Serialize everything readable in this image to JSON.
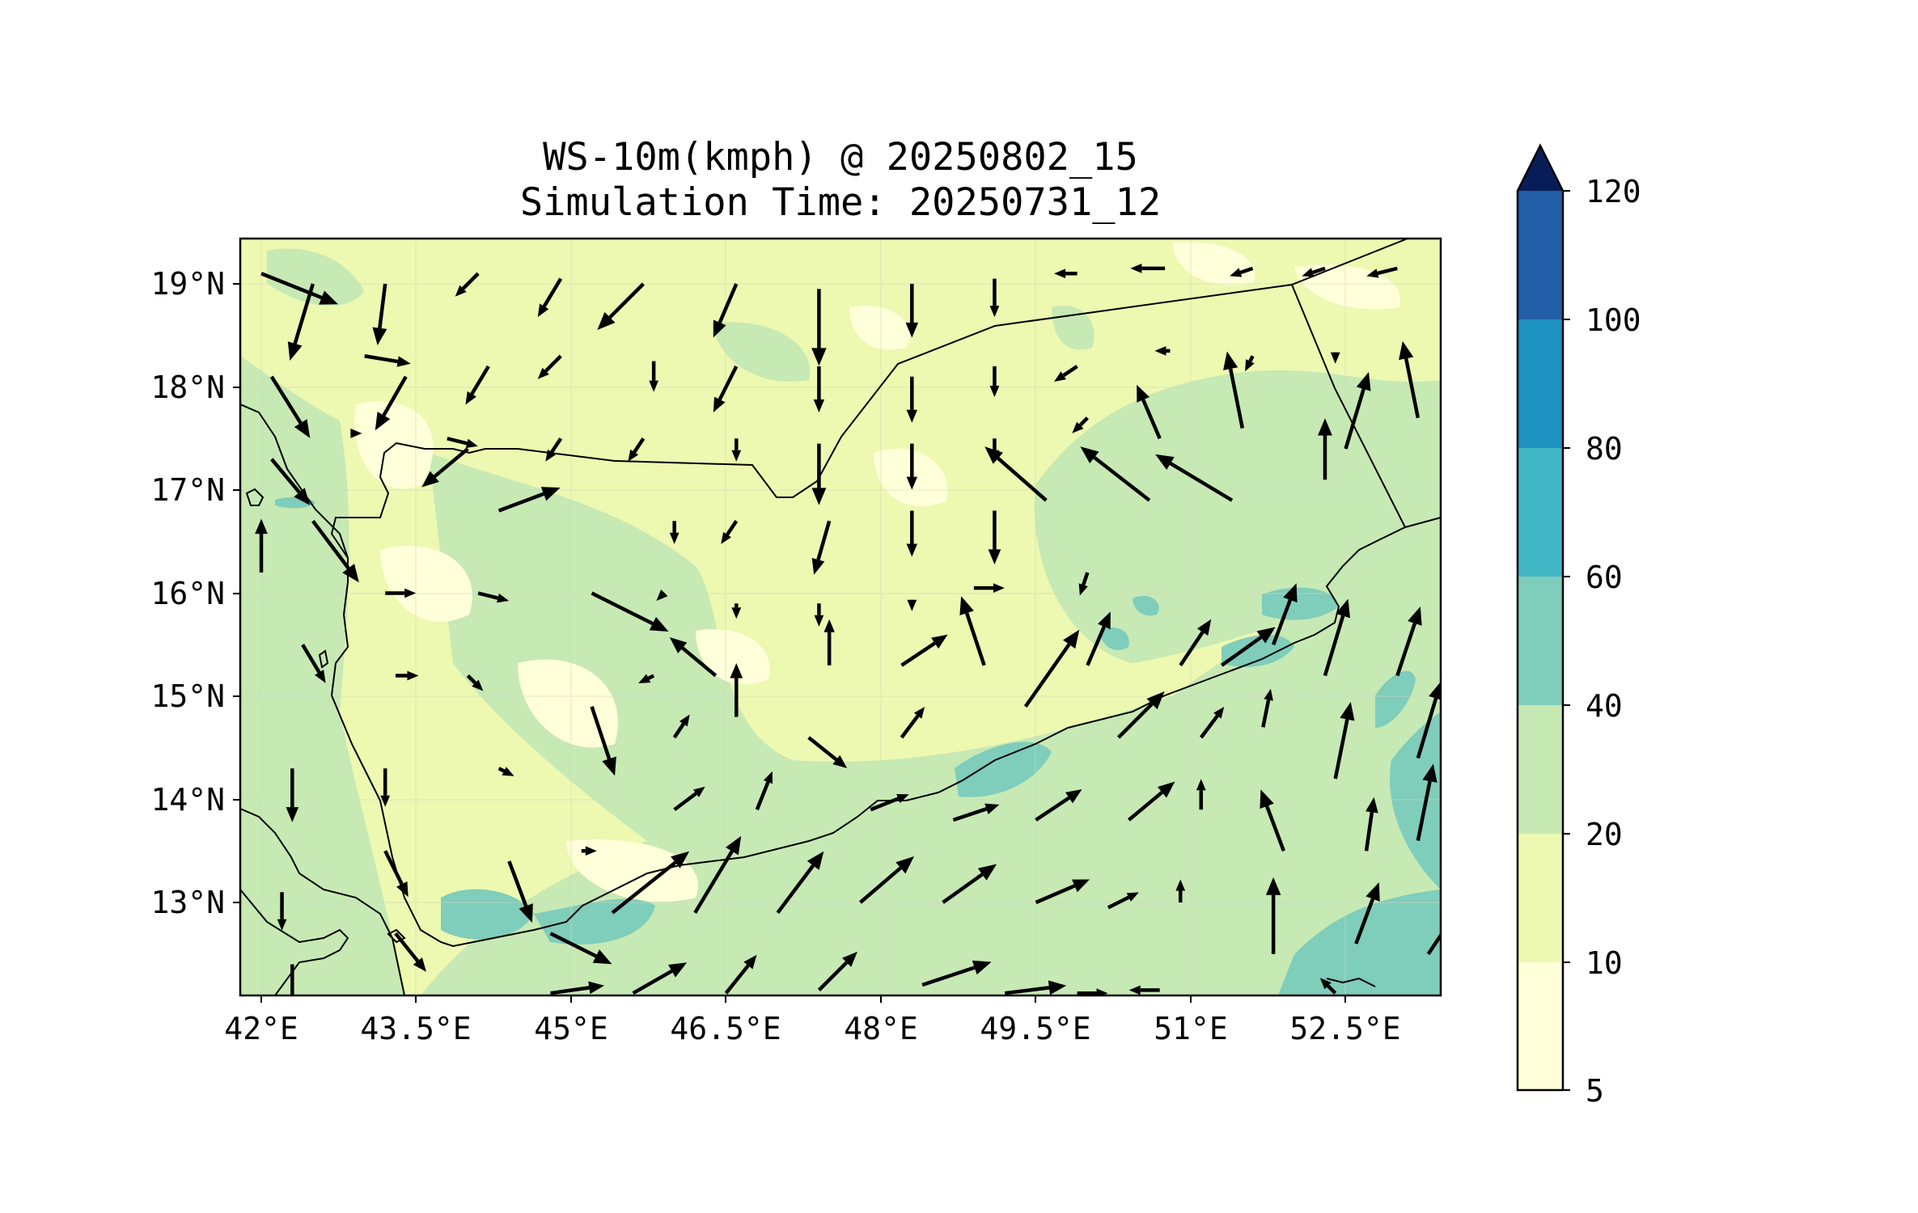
{
  "figure": {
    "title": "WS-10m(kmph) @ 20250802_15",
    "subtitle": "Simulation Time: 20250731_12"
  },
  "axes": {
    "lon_ticks": [
      "42°E",
      "43.5°E",
      "45°E",
      "46.5°E",
      "48°E",
      "49.5°E",
      "51°E",
      "52.5°E"
    ],
    "lat_ticks": [
      "19°N",
      "18°N",
      "17°N",
      "16°N",
      "15°N",
      "14°N",
      "13°N"
    ]
  },
  "colorbar": {
    "labels": [
      "5",
      "10",
      "20",
      "40",
      "60",
      "80",
      "100",
      "120"
    ],
    "colors": [
      "#ffffd9",
      "#edf8b1",
      "#c7e9b4",
      "#7fcdbb",
      "#41b6c4",
      "#1d91c0",
      "#225ea8",
      "#253494",
      "#081d58"
    ],
    "extend": "max"
  },
  "chart_data": {
    "type": "heatmap",
    "title": "WS-10m(kmph) @ 20250802_15",
    "subtitle": "Simulation Time: 20250731_12",
    "variable": "WS-10m(kmph)",
    "lon_range": [
      41.9,
      53.5
    ],
    "lat_range": [
      12.1,
      19.45
    ],
    "color_levels": [
      5,
      10,
      20,
      40,
      60,
      80,
      100,
      120
    ],
    "grid": true,
    "wind_vectors": [
      {
        "lon": 42.0,
        "lat": 19.1,
        "u": 1,
        "v": -0.4
      },
      {
        "lon": 42.5,
        "lat": 19.0,
        "u": -0.3,
        "v": -1
      },
      {
        "lon": 43.2,
        "lat": 19.0,
        "u": -0.1,
        "v": -0.8
      },
      {
        "lon": 44.1,
        "lat": 19.1,
        "u": -0.3,
        "v": -0.3
      },
      {
        "lon": 44.9,
        "lat": 19.05,
        "u": -0.3,
        "v": -0.5
      },
      {
        "lon": 45.7,
        "lat": 19.0,
        "u": -0.6,
        "v": -0.6
      },
      {
        "lon": 46.6,
        "lat": 19.0,
        "u": -0.3,
        "v": -0.7
      },
      {
        "lon": 47.4,
        "lat": 18.95,
        "u": 0,
        "v": -1
      },
      {
        "lon": 48.3,
        "lat": 19.0,
        "u": 0,
        "v": -0.7
      },
      {
        "lon": 49.1,
        "lat": 19.05,
        "u": 0,
        "v": -0.5
      },
      {
        "lon": 49.9,
        "lat": 19.1,
        "u": -0.3,
        "v": 0
      },
      {
        "lon": 50.75,
        "lat": 19.15,
        "u": -0.45,
        "v": 0
      },
      {
        "lon": 51.6,
        "lat": 19.15,
        "u": -0.3,
        "v": -0.1
      },
      {
        "lon": 52.3,
        "lat": 19.15,
        "u": -0.3,
        "v": -0.1
      },
      {
        "lon": 53.0,
        "lat": 19.15,
        "u": -0.4,
        "v": -0.1
      },
      {
        "lon": 42.1,
        "lat": 18.1,
        "u": 0.5,
        "v": -0.8
      },
      {
        "lon": 43.0,
        "lat": 18.3,
        "u": 0.6,
        "v": -0.1
      },
      {
        "lon": 43.4,
        "lat": 18.1,
        "u": -0.4,
        "v": -0.7
      },
      {
        "lon": 44.2,
        "lat": 18.2,
        "u": -0.3,
        "v": -0.5
      },
      {
        "lon": 44.9,
        "lat": 18.3,
        "u": -0.3,
        "v": -0.3
      },
      {
        "lon": 45.8,
        "lat": 18.25,
        "u": 0,
        "v": -0.4
      },
      {
        "lon": 46.6,
        "lat": 18.2,
        "u": -0.3,
        "v": -0.6
      },
      {
        "lon": 47.4,
        "lat": 18.2,
        "u": 0,
        "v": -0.6
      },
      {
        "lon": 48.3,
        "lat": 18.1,
        "u": 0,
        "v": -0.6
      },
      {
        "lon": 49.1,
        "lat": 18.2,
        "u": 0,
        "v": -0.4
      },
      {
        "lon": 49.9,
        "lat": 18.2,
        "u": -0.3,
        "v": -0.2
      },
      {
        "lon": 50.8,
        "lat": 18.35,
        "u": -0.2,
        "v": 0
      },
      {
        "lon": 51.6,
        "lat": 18.3,
        "u": -0.1,
        "v": -0.2
      },
      {
        "lon": 52.4,
        "lat": 18.3,
        "u": 0,
        "v": -0.1
      },
      {
        "lon": 42.1,
        "lat": 17.3,
        "u": 0.5,
        "v": -0.6
      },
      {
        "lon": 42.9,
        "lat": 17.55,
        "u": 0.1,
        "v": 0
      },
      {
        "lon": 43.8,
        "lat": 17.5,
        "u": 0.4,
        "v": -0.1
      },
      {
        "lon": 44.0,
        "lat": 17.4,
        "u": -0.6,
        "v": -0.5
      },
      {
        "lon": 44.9,
        "lat": 17.5,
        "u": -0.2,
        "v": -0.3
      },
      {
        "lon": 45.7,
        "lat": 17.5,
        "u": -0.2,
        "v": -0.3
      },
      {
        "lon": 46.6,
        "lat": 17.5,
        "u": 0,
        "v": -0.3
      },
      {
        "lon": 47.4,
        "lat": 17.45,
        "u": 0,
        "v": -0.8
      },
      {
        "lon": 48.3,
        "lat": 17.45,
        "u": 0,
        "v": -0.6
      },
      {
        "lon": 49.1,
        "lat": 17.5,
        "u": 0,
        "v": -0.3
      },
      {
        "lon": 50.0,
        "lat": 17.7,
        "u": -0.2,
        "v": -0.2
      },
      {
        "lon": 49.6,
        "lat": 16.9,
        "u": -0.8,
        "v": 0.7
      },
      {
        "lon": 50.7,
        "lat": 17.5,
        "u": -0.3,
        "v": 0.7
      },
      {
        "lon": 50.6,
        "lat": 16.9,
        "u": -0.9,
        "v": 0.7
      },
      {
        "lon": 51.4,
        "lat": 16.9,
        "u": -1,
        "v": 0.6
      },
      {
        "lon": 51.5,
        "lat": 17.6,
        "u": -0.2,
        "v": 1
      },
      {
        "lon": 52.3,
        "lat": 17.1,
        "u": 0,
        "v": 0.8
      },
      {
        "lon": 52.5,
        "lat": 17.4,
        "u": 0.3,
        "v": 1
      },
      {
        "lon": 53.2,
        "lat": 17.7,
        "u": -0.2,
        "v": 1
      },
      {
        "lon": 42.5,
        "lat": 16.7,
        "u": 0.6,
        "v": -0.8
      },
      {
        "lon": 42.0,
        "lat": 16.2,
        "u": 0,
        "v": 0.7
      },
      {
        "lon": 43.2,
        "lat": 16.0,
        "u": 0.4,
        "v": 0
      },
      {
        "lon": 44.1,
        "lat": 16.0,
        "u": 0.4,
        "v": -0.1
      },
      {
        "lon": 44.3,
        "lat": 16.8,
        "u": 0.8,
        "v": 0.3
      },
      {
        "lon": 45.2,
        "lat": 16.0,
        "u": 1,
        "v": -0.5
      },
      {
        "lon": 45.9,
        "lat": 16.0,
        "u": -0.1,
        "v": -0.1
      },
      {
        "lon": 46.0,
        "lat": 16.7,
        "u": 0,
        "v": -0.3
      },
      {
        "lon": 46.6,
        "lat": 16.7,
        "u": -0.2,
        "v": -0.3
      },
      {
        "lon": 46.6,
        "lat": 15.9,
        "u": 0,
        "v": -0.2
      },
      {
        "lon": 47.4,
        "lat": 15.9,
        "u": 0,
        "v": -0.3
      },
      {
        "lon": 47.5,
        "lat": 16.7,
        "u": -0.2,
        "v": -0.7
      },
      {
        "lon": 48.3,
        "lat": 16.8,
        "u": 0,
        "v": -0.6
      },
      {
        "lon": 48.3,
        "lat": 15.9,
        "u": 0,
        "v": -0.1
      },
      {
        "lon": 49.1,
        "lat": 16.8,
        "u": 0,
        "v": -0.7
      },
      {
        "lon": 48.9,
        "lat": 16.05,
        "u": 0.4,
        "v": 0
      },
      {
        "lon": 50.0,
        "lat": 16.2,
        "u": -0.1,
        "v": -0.3
      },
      {
        "lon": 46.4,
        "lat": 15.2,
        "u": -0.6,
        "v": 0.5
      },
      {
        "lon": 47.5,
        "lat": 15.3,
        "u": 0,
        "v": 0.6
      },
      {
        "lon": 48.2,
        "lat": 15.3,
        "u": 0.6,
        "v": 0.4
      },
      {
        "lon": 49.0,
        "lat": 15.3,
        "u": -0.3,
        "v": 0.9
      },
      {
        "lon": 50.0,
        "lat": 15.3,
        "u": 0.3,
        "v": 0.7
      },
      {
        "lon": 50.9,
        "lat": 15.3,
        "u": 0.4,
        "v": 0.6
      },
      {
        "lon": 51.3,
        "lat": 15.3,
        "u": 0.7,
        "v": 0.5
      },
      {
        "lon": 51.8,
        "lat": 15.5,
        "u": 0.3,
        "v": 0.8
      },
      {
        "lon": 52.3,
        "lat": 15.2,
        "u": 0.3,
        "v": 1
      },
      {
        "lon": 53.0,
        "lat": 15.2,
        "u": 0.3,
        "v": 0.9
      },
      {
        "lon": 42.4,
        "lat": 15.5,
        "u": 0.3,
        "v": -0.5
      },
      {
        "lon": 43.3,
        "lat": 15.2,
        "u": 0.3,
        "v": 0
      },
      {
        "lon": 44.0,
        "lat": 15.2,
        "u": 0.2,
        "v": -0.2
      },
      {
        "lon": 45.2,
        "lat": 14.9,
        "u": 0.3,
        "v": -0.9
      },
      {
        "lon": 45.8,
        "lat": 15.2,
        "u": -0.2,
        "v": -0.1
      },
      {
        "lon": 46.6,
        "lat": 14.8,
        "u": 0,
        "v": 0.7
      },
      {
        "lon": 46.0,
        "lat": 14.6,
        "u": 0.2,
        "v": 0.3
      },
      {
        "lon": 47.3,
        "lat": 14.6,
        "u": 0.5,
        "v": -0.4
      },
      {
        "lon": 48.2,
        "lat": 14.6,
        "u": 0.3,
        "v": 0.4
      },
      {
        "lon": 49.4,
        "lat": 14.9,
        "u": 0.7,
        "v": 1
      },
      {
        "lon": 50.3,
        "lat": 14.6,
        "u": 0.6,
        "v": 0.6
      },
      {
        "lon": 51.1,
        "lat": 14.6,
        "u": 0.3,
        "v": 0.4
      },
      {
        "lon": 51.7,
        "lat": 14.7,
        "u": 0.1,
        "v": 0.5
      },
      {
        "lon": 52.4,
        "lat": 14.2,
        "u": 0.2,
        "v": 1
      },
      {
        "lon": 53.2,
        "lat": 14.4,
        "u": 0.3,
        "v": 1
      },
      {
        "lon": 42.3,
        "lat": 14.3,
        "u": 0,
        "v": -0.7
      },
      {
        "lon": 43.2,
        "lat": 14.3,
        "u": 0,
        "v": -0.5
      },
      {
        "lon": 44.3,
        "lat": 14.3,
        "u": 0.2,
        "v": -0.1
      },
      {
        "lon": 43.2,
        "lat": 13.5,
        "u": 0.3,
        "v": -0.6
      },
      {
        "lon": 44.4,
        "lat": 13.4,
        "u": 0.3,
        "v": -0.8
      },
      {
        "lon": 45.1,
        "lat": 13.5,
        "u": 0.2,
        "v": 0
      },
      {
        "lon": 46.0,
        "lat": 13.9,
        "u": 0.4,
        "v": 0.3
      },
      {
        "lon": 46.8,
        "lat": 13.9,
        "u": 0.2,
        "v": 0.5
      },
      {
        "lon": 47.9,
        "lat": 13.9,
        "u": 0.5,
        "v": 0.2
      },
      {
        "lon": 48.7,
        "lat": 13.8,
        "u": 0.6,
        "v": 0.2
      },
      {
        "lon": 49.5,
        "lat": 13.8,
        "u": 0.6,
        "v": 0.4
      },
      {
        "lon": 50.4,
        "lat": 13.8,
        "u": 0.6,
        "v": 0.5
      },
      {
        "lon": 51.1,
        "lat": 13.9,
        "u": 0,
        "v": 0.4
      },
      {
        "lon": 51.9,
        "lat": 13.5,
        "u": -0.3,
        "v": 0.8
      },
      {
        "lon": 52.7,
        "lat": 13.5,
        "u": 0.1,
        "v": 0.7
      },
      {
        "lon": 53.2,
        "lat": 13.6,
        "u": 0.2,
        "v": 1
      },
      {
        "lon": 42.2,
        "lat": 13.1,
        "u": 0,
        "v": -0.5
      },
      {
        "lon": 42.3,
        "lat": 12.4,
        "u": 0,
        "v": -0.8
      },
      {
        "lon": 43.3,
        "lat": 12.7,
        "u": 0.4,
        "v": -0.5
      },
      {
        "lon": 44.8,
        "lat": 12.7,
        "u": 0.8,
        "v": -0.4
      },
      {
        "lon": 45.4,
        "lat": 12.9,
        "u": 1,
        "v": 0.8
      },
      {
        "lon": 46.2,
        "lat": 12.9,
        "u": 0.6,
        "v": 1
      },
      {
        "lon": 47.0,
        "lat": 12.9,
        "u": 0.6,
        "v": 0.8
      },
      {
        "lon": 47.8,
        "lat": 13.0,
        "u": 0.7,
        "v": 0.6
      },
      {
        "lon": 48.6,
        "lat": 13.0,
        "u": 0.7,
        "v": 0.5
      },
      {
        "lon": 49.5,
        "lat": 13.0,
        "u": 0.7,
        "v": 0.3
      },
      {
        "lon": 50.2,
        "lat": 12.95,
        "u": 0.4,
        "v": 0.2
      },
      {
        "lon": 50.9,
        "lat": 13.0,
        "u": 0,
        "v": 0.3
      },
      {
        "lon": 51.8,
        "lat": 12.5,
        "u": 0,
        "v": 1
      },
      {
        "lon": 52.6,
        "lat": 12.6,
        "u": 0.3,
        "v": 0.8
      },
      {
        "lon": 53.3,
        "lat": 12.5,
        "u": 0.4,
        "v": 0.6
      },
      {
        "lon": 44.8,
        "lat": 12.12,
        "u": 0.7,
        "v": 0.1
      },
      {
        "lon": 45.6,
        "lat": 12.12,
        "u": 0.7,
        "v": 0.4
      },
      {
        "lon": 46.5,
        "lat": 12.12,
        "u": 0.4,
        "v": 0.5
      },
      {
        "lon": 47.4,
        "lat": 12.15,
        "u": 0.5,
        "v": 0.5
      },
      {
        "lon": 48.4,
        "lat": 12.2,
        "u": 0.9,
        "v": 0.3
      },
      {
        "lon": 49.2,
        "lat": 12.12,
        "u": 0.8,
        "v": 0.1
      },
      {
        "lon": 49.9,
        "lat": 12.12,
        "u": 0.4,
        "v": 0
      },
      {
        "lon": 50.7,
        "lat": 12.15,
        "u": -0.4,
        "v": 0
      },
      {
        "lon": 52.4,
        "lat": 12.12,
        "u": -0.2,
        "v": 0.2
      }
    ]
  }
}
